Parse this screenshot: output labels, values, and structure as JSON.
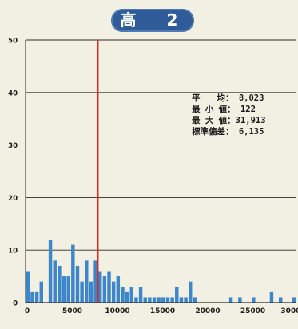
{
  "chart_data": {
    "type": "bar",
    "title": "高　2",
    "xlabel": "",
    "ylabel": "",
    "xlim": [
      0,
      30000
    ],
    "ylim": [
      0,
      50
    ],
    "x_ticks": [
      0,
      5000,
      10000,
      15000,
      20000,
      25000,
      30000
    ],
    "x_tick_labels": [
      "0",
      "5000",
      "10000",
      "15000",
      "20000",
      "25000",
      "30000"
    ],
    "y_ticks": [
      0,
      10,
      20,
      30,
      40,
      50
    ],
    "y_tick_labels": [
      "0",
      "10",
      "20",
      "30",
      "40",
      "50"
    ],
    "grid": "horizontal",
    "bar_width": 500,
    "bars": [
      {
        "x": 250,
        "value": 6
      },
      {
        "x": 750,
        "value": 2
      },
      {
        "x": 1250,
        "value": 2
      },
      {
        "x": 1750,
        "value": 4
      },
      {
        "x": 2750,
        "value": 12
      },
      {
        "x": 3250,
        "value": 8
      },
      {
        "x": 3750,
        "value": 7
      },
      {
        "x": 4250,
        "value": 5
      },
      {
        "x": 4750,
        "value": 5
      },
      {
        "x": 5250,
        "value": 11
      },
      {
        "x": 5750,
        "value": 7
      },
      {
        "x": 6250,
        "value": 4
      },
      {
        "x": 6750,
        "value": 8
      },
      {
        "x": 7250,
        "value": 4
      },
      {
        "x": 7750,
        "value": 8
      },
      {
        "x": 8250,
        "value": 6
      },
      {
        "x": 8750,
        "value": 5
      },
      {
        "x": 9250,
        "value": 6
      },
      {
        "x": 9750,
        "value": 4
      },
      {
        "x": 10250,
        "value": 5
      },
      {
        "x": 10750,
        "value": 3
      },
      {
        "x": 11250,
        "value": 2
      },
      {
        "x": 11750,
        "value": 3
      },
      {
        "x": 12250,
        "value": 1
      },
      {
        "x": 12750,
        "value": 3
      },
      {
        "x": 13250,
        "value": 1
      },
      {
        "x": 13750,
        "value": 1
      },
      {
        "x": 14250,
        "value": 1
      },
      {
        "x": 14750,
        "value": 1
      },
      {
        "x": 15250,
        "value": 1
      },
      {
        "x": 15750,
        "value": 1
      },
      {
        "x": 16250,
        "value": 1
      },
      {
        "x": 16750,
        "value": 3
      },
      {
        "x": 17250,
        "value": 1
      },
      {
        "x": 17750,
        "value": 1
      },
      {
        "x": 18250,
        "value": 4
      },
      {
        "x": 18750,
        "value": 1
      },
      {
        "x": 22750,
        "value": 1
      },
      {
        "x": 23750,
        "value": 1
      },
      {
        "x": 25250,
        "value": 1
      },
      {
        "x": 27250,
        "value": 2
      },
      {
        "x": 28250,
        "value": 1
      },
      {
        "x": 29750,
        "value": 1
      }
    ],
    "mean_line": {
      "value": 8023,
      "color": "#d8281c"
    },
    "stats": [
      "平　　均：  8,023",
      "最 小 値：    122",
      "最 大 値：31,913",
      "標準偏差：  6,135"
    ],
    "bar_color": "#3c86c9",
    "grid_color": "#2a2a2a"
  }
}
